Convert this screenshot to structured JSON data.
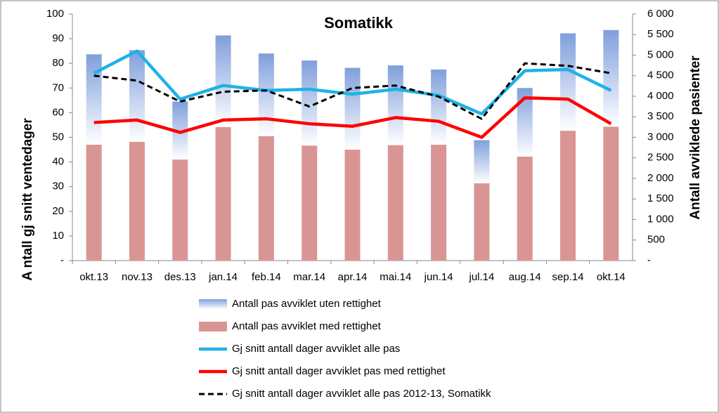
{
  "chart_data": {
    "type": "combo",
    "title": "Somatikk",
    "y_label": "A ntall gj snitt ventedager",
    "y2_label": "Antall avviklede  pasienter",
    "categories": [
      "okt.13",
      "nov.13",
      "des.13",
      "jan.14",
      "feb.14",
      "mar.14",
      "apr.14",
      "mai.14",
      "jun.14",
      "jul.14",
      "aug.14",
      "sep.14",
      "okt.14"
    ],
    "ylim": [
      0,
      100
    ],
    "yticks": [
      {
        "value": 0,
        "label": "-"
      },
      10,
      20,
      30,
      40,
      50,
      60,
      70,
      80,
      90,
      100
    ],
    "y2lim": [
      0,
      6000
    ],
    "y2ticks": [
      {
        "value": 0,
        "label": "-"
      },
      500,
      {
        "value": 1000,
        "label": "1 000"
      },
      {
        "value": 1500,
        "label": "1 500"
      },
      {
        "value": 2000,
        "label": "2 000"
      },
      {
        "value": 2500,
        "label": "2 500"
      },
      {
        "value": 3000,
        "label": "3 000"
      },
      {
        "value": 3500,
        "label": "3 500"
      },
      {
        "value": 4000,
        "label": "4 000"
      },
      {
        "value": 4500,
        "label": "4 500"
      },
      {
        "value": 5000,
        "label": "5 000"
      },
      {
        "value": 5500,
        "label": "5 500"
      },
      {
        "value": 6000,
        "label": "6 000"
      }
    ],
    "series": [
      {
        "name": "Antall pas avviklet uten rettighet",
        "type": "bar",
        "axis": "y2",
        "color": "#7f9fdc",
        "values": [
          2200,
          2230,
          1410,
          2230,
          2010,
          2070,
          1990,
          1940,
          1830,
          1050,
          1670,
          2370,
          2350
        ]
      },
      {
        "name": "Antall pas avviklet med rettighet",
        "type": "bar",
        "axis": "y2",
        "color": "#d99594",
        "values": [
          2820,
          2890,
          2460,
          3250,
          3030,
          2800,
          2700,
          2810,
          2820,
          1880,
          2530,
          3160,
          3260
        ]
      },
      {
        "name": "Gj snitt antall dager avviklet alle pas",
        "type": "line",
        "color": "#1fb2e6",
        "values": [
          76,
          85,
          65.5,
          71,
          69,
          69.5,
          67.5,
          69.5,
          67,
          59.5,
          77,
          77.5,
          69
        ]
      },
      {
        "name": "Gj snitt antall dager avviklet pas med rettighet",
        "type": "line",
        "color": "#ff0000",
        "values": [
          56,
          57,
          52,
          57,
          57.5,
          55.5,
          54.5,
          58,
          56.5,
          50,
          66,
          65.5,
          55.5
        ]
      },
      {
        "name": "Gj snitt antall dager avviklet alle pas 2012-13, Somatikk",
        "type": "line",
        "dashed": true,
        "color": "#000000",
        "values": [
          75,
          73,
          64.5,
          68.5,
          69,
          62.5,
          70,
          71,
          66.5,
          57.5,
          80,
          79,
          76
        ]
      }
    ]
  }
}
